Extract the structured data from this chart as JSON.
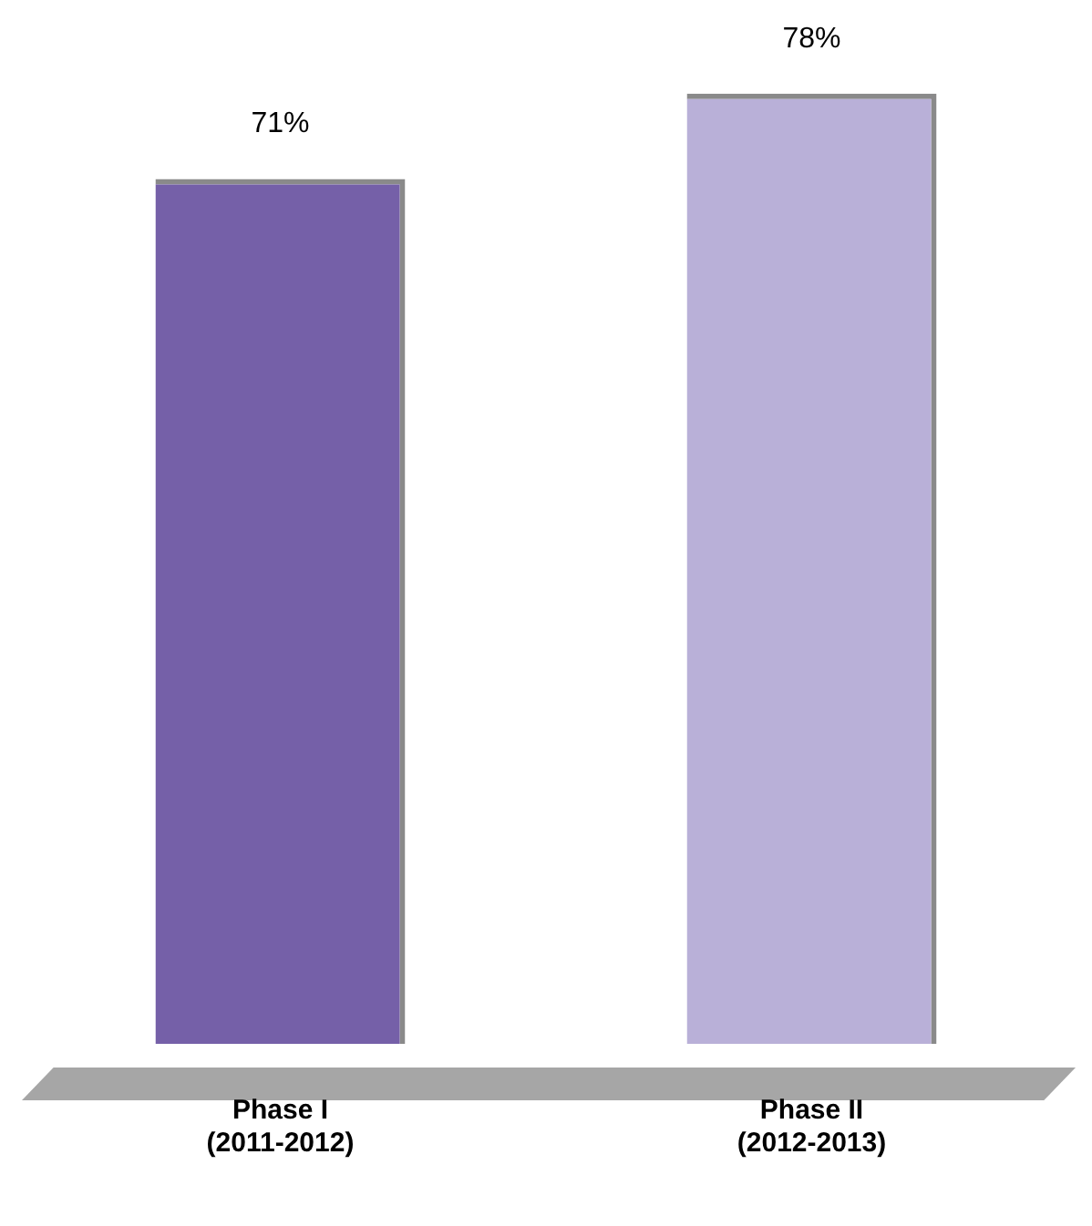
{
  "chart_data": {
    "type": "bar",
    "categories": [
      "Phase I\n(2011-2012)",
      "Phase II\n(2012-2013)"
    ],
    "values": [
      71,
      78
    ],
    "value_labels": [
      "71%",
      "78%"
    ],
    "colors": [
      "#7560a8",
      "#b9b0d8"
    ],
    "grid": false,
    "legend": false
  }
}
